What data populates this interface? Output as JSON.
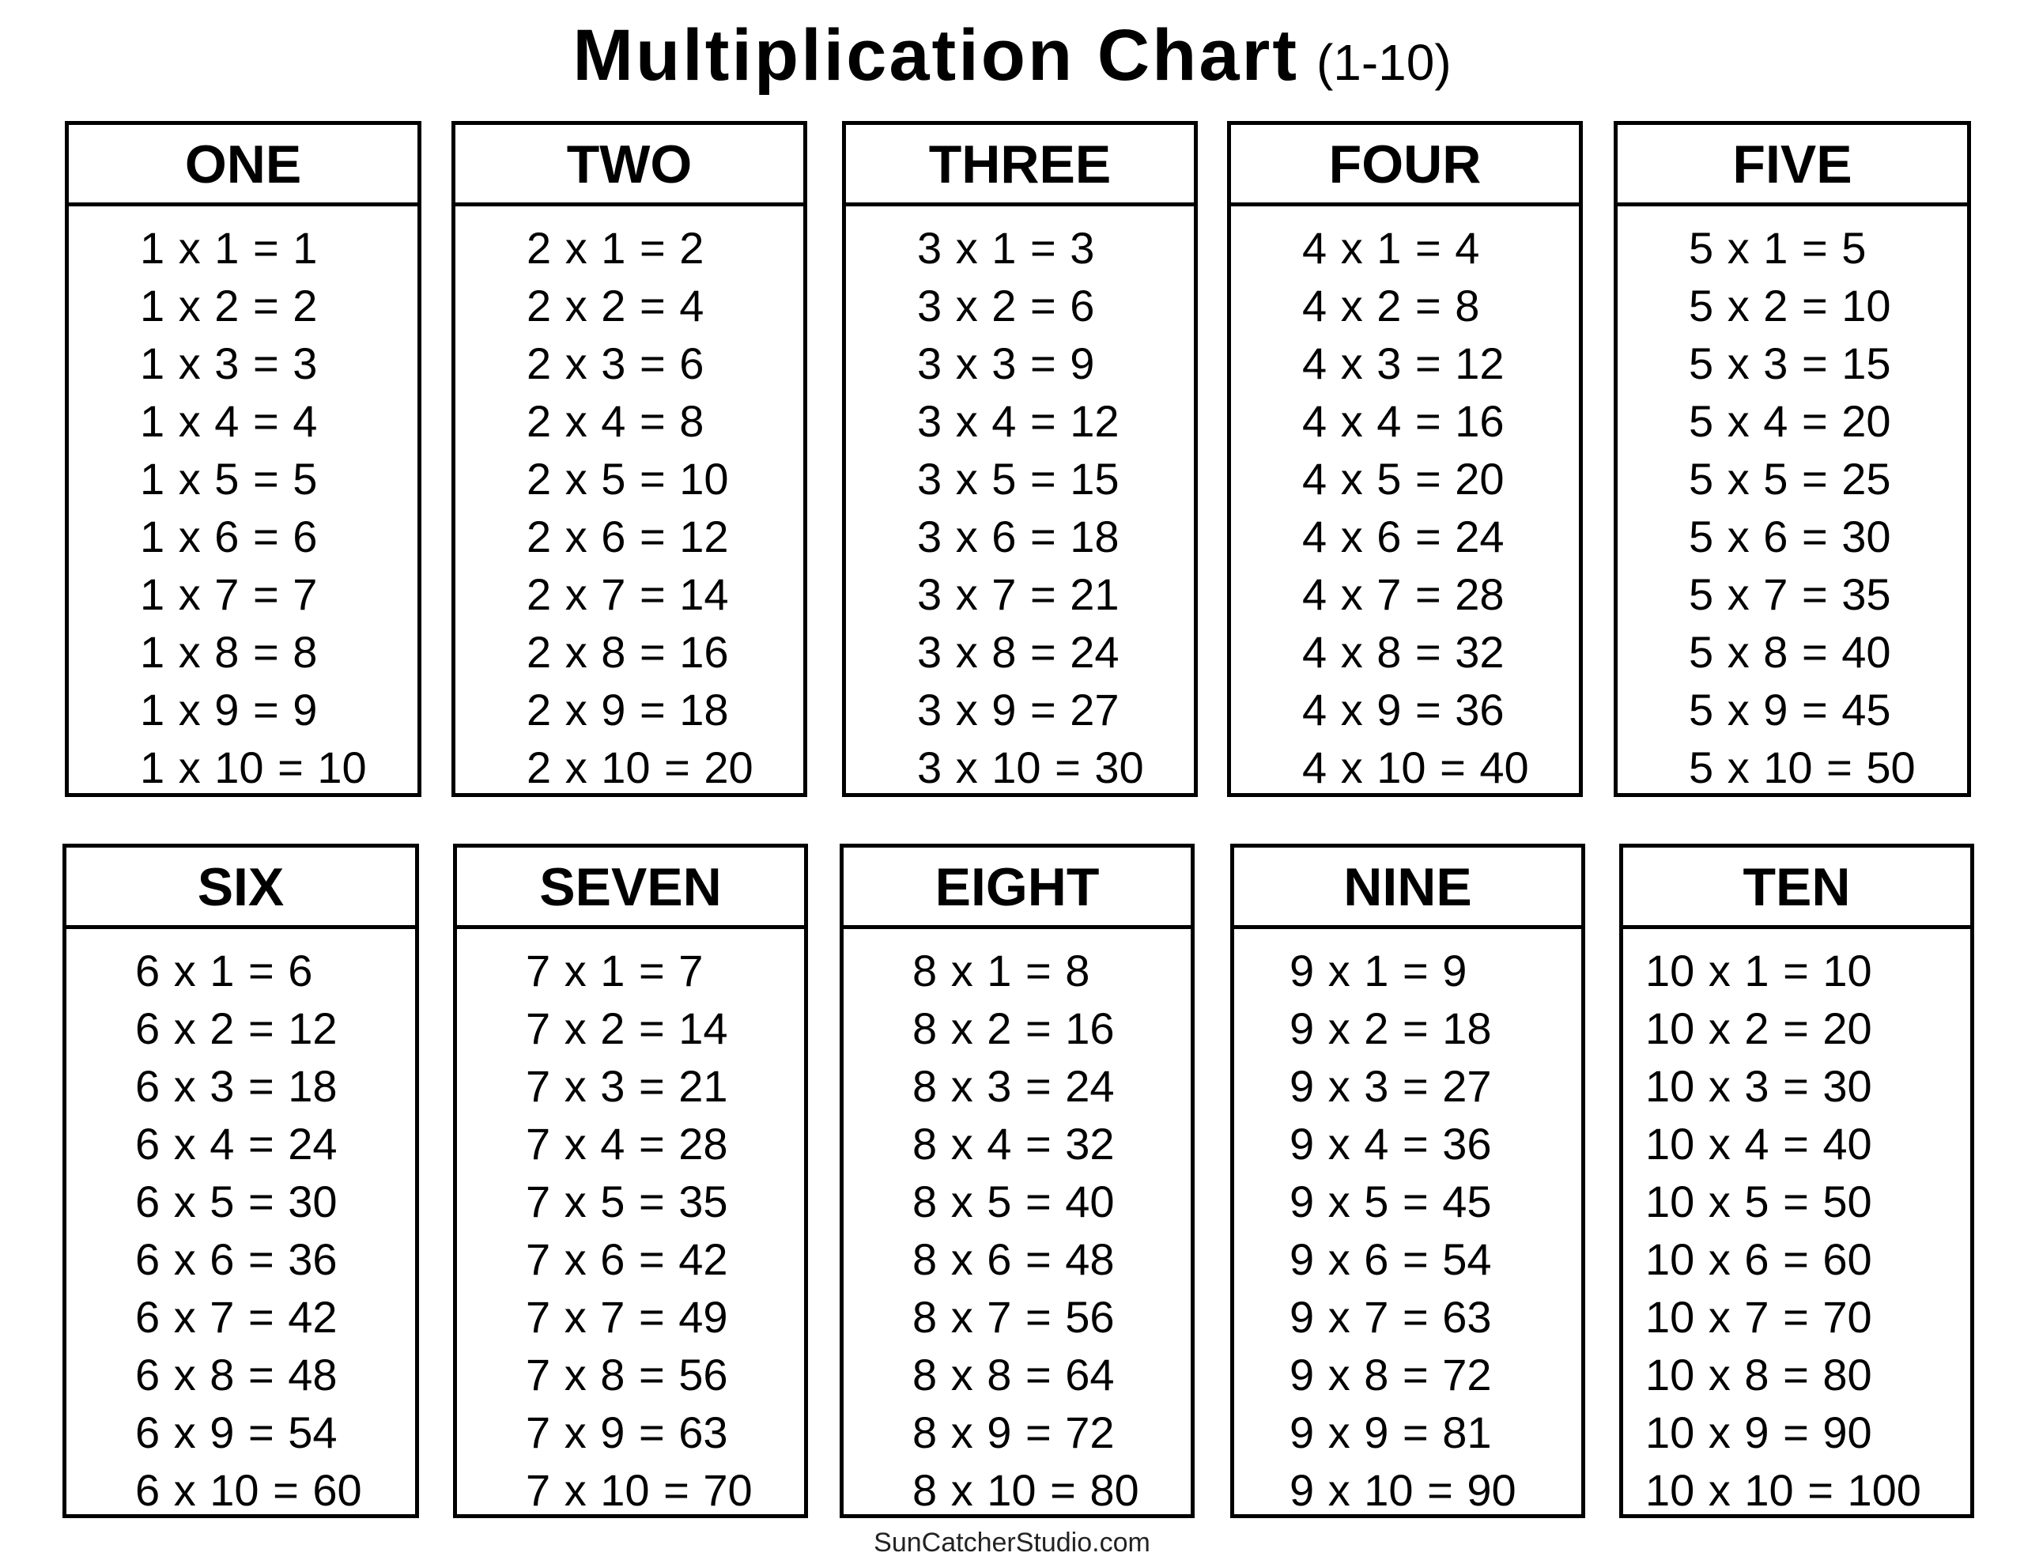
{
  "title": {
    "main": "Multiplication Chart",
    "range": "(1-10)"
  },
  "tables": [
    {
      "heading": "ONE",
      "rows": [
        "1 x 1 = 1",
        "1 x 2 = 2",
        "1 x 3 = 3",
        "1 x 4 = 4",
        "1 x 5 = 5",
        "1 x 6 = 6",
        "1 x 7 = 7",
        "1 x 8 = 8",
        "1 x 9 = 9",
        "1 x 10 = 10"
      ]
    },
    {
      "heading": "TWO",
      "rows": [
        "2 x 1 = 2",
        "2 x 2 = 4",
        "2 x 3 = 6",
        "2 x 4 = 8",
        "2 x 5 = 10",
        "2 x 6 = 12",
        "2 x 7 = 14",
        "2 x 8 = 16",
        "2 x 9 = 18",
        "2 x 10 = 20"
      ]
    },
    {
      "heading": "THREE",
      "rows": [
        "3 x 1 = 3",
        "3 x 2 = 6",
        "3 x 3 = 9",
        "3 x 4 = 12",
        "3 x 5 = 15",
        "3 x 6 = 18",
        "3 x 7 = 21",
        "3 x 8 = 24",
        "3 x 9 = 27",
        "3 x 10 = 30"
      ]
    },
    {
      "heading": "FOUR",
      "rows": [
        "4 x 1 = 4",
        "4 x 2 = 8",
        "4 x 3 = 12",
        "4 x 4 = 16",
        "4 x 5 = 20",
        "4 x 6 = 24",
        "4 x 7 = 28",
        "4 x 8 = 32",
        "4 x 9 = 36",
        "4 x 10 = 40"
      ]
    },
    {
      "heading": "FIVE",
      "rows": [
        "5 x 1 = 5",
        "5 x 2 = 10",
        "5 x 3 = 15",
        "5 x 4 = 20",
        "5 x 5 = 25",
        "5 x 6 = 30",
        "5 x 7 = 35",
        "5 x 8 = 40",
        "5 x 9 = 45",
        "5 x 10 = 50"
      ]
    },
    {
      "heading": "SIX",
      "rows": [
        "6 x 1 = 6",
        "6 x 2 = 12",
        "6 x 3 = 18",
        "6 x 4 = 24",
        "6 x 5 = 30",
        "6 x 6 = 36",
        "6 x 7 = 42",
        "6 x 8 = 48",
        "6 x 9 = 54",
        "6 x 10 = 60"
      ]
    },
    {
      "heading": "SEVEN",
      "rows": [
        "7 x 1 = 7",
        "7 x 2 = 14",
        "7 x 3 = 21",
        "7 x 4 = 28",
        "7 x 5 = 35",
        "7 x 6 = 42",
        "7 x 7 = 49",
        "7 x 8 = 56",
        "7 x 9 = 63",
        "7 x 10 = 70"
      ]
    },
    {
      "heading": "EIGHT",
      "rows": [
        "8 x 1 = 8",
        "8 x 2 = 16",
        "8 x 3 = 24",
        "8 x 4 = 32",
        "8 x 5 = 40",
        "8 x 6 = 48",
        "8 x 7 = 56",
        "8 x 8 = 64",
        "8 x 9 = 72",
        "8 x 10 = 80"
      ]
    },
    {
      "heading": "NINE",
      "rows": [
        "9 x 1 = 9",
        "9 x 2 = 18",
        "9 x 3 = 27",
        "9 x 4 = 36",
        "9 x 5 = 45",
        "9 x 6 = 54",
        "9 x 7 = 63",
        "9 x 8 = 72",
        "9 x 9 = 81",
        "9 x 10 = 90"
      ]
    },
    {
      "heading": "TEN",
      "rows": [
        "10 x 1 = 10",
        "10 x 2 = 20",
        "10 x 3 = 30",
        "10 x 4 = 40",
        "10 x 5 = 50",
        "10 x 6 = 60",
        "10 x 7 = 70",
        "10 x 8 = 80",
        "10 x 9 = 90",
        "10 x 10 = 100"
      ]
    }
  ],
  "footer": "SunCatcherStudio.com"
}
